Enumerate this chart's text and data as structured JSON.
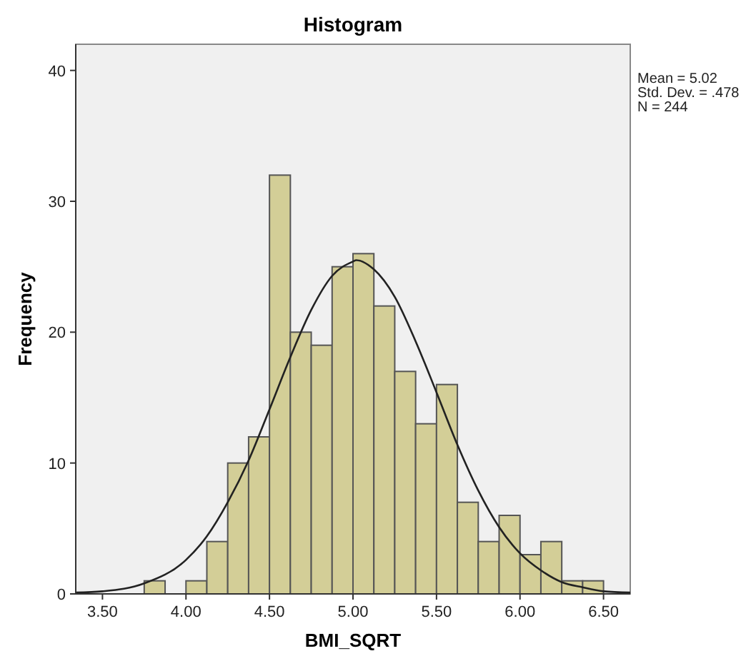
{
  "chart_data": {
    "type": "histogram",
    "title": "Histogram",
    "xlabel": "BMI_SQRT",
    "ylabel": "Frequency",
    "annotations": [
      "Mean = 5.02",
      "Std. Dev. = .478",
      "N = 244"
    ],
    "xlim": [
      3.34,
      6.66
    ],
    "xticks": [
      {
        "value": 3.5,
        "label": "3.50"
      },
      {
        "value": 4,
        "label": "4.00"
      },
      {
        "value": 4.5,
        "label": "4.50"
      },
      {
        "value": 5,
        "label": "5.00"
      },
      {
        "value": 5.5,
        "label": "5.50"
      },
      {
        "value": 6,
        "label": "6.00"
      },
      {
        "value": 6.5,
        "label": "6.50"
      }
    ],
    "ylim": [
      0,
      42
    ],
    "yticks": [
      0,
      10,
      20,
      30,
      40
    ],
    "grid": false,
    "series": [
      {
        "color": "#d3ce97",
        "bins": [
          3.75,
          3.875,
          4,
          4.125,
          4.25,
          4.375,
          4.5,
          4.625,
          4.75,
          4.875,
          5,
          5.125,
          5.25,
          5.375,
          5.5,
          5.625,
          5.75,
          5.875,
          6,
          6.125,
          6.25,
          6.375,
          6.5
        ],
        "values": [
          1,
          0,
          1,
          4,
          10,
          12,
          32,
          20,
          19,
          25,
          26,
          22,
          17,
          13,
          16,
          7,
          4,
          6,
          3,
          4,
          1,
          1
        ]
      },
      {
        "type": "line",
        "color": "#222222",
        "x": [
          3.34,
          3.5,
          3.75,
          4,
          4.125,
          4.25,
          4.375,
          4.5,
          4.625,
          4.75,
          4.875,
          5,
          5.02,
          5.125,
          5.25,
          5.375,
          5.5,
          5.625,
          5.75,
          5.875,
          6,
          6.125,
          6.25,
          6.375,
          6.5,
          6.66
        ],
        "values": [
          0.1,
          0.2,
          0.8,
          2.6,
          4.4,
          7,
          10.2,
          14.1,
          18.1,
          21.7,
          24.3,
          25.4,
          25.5,
          24.8,
          22.7,
          19.3,
          15.4,
          11.4,
          7.9,
          5.1,
          3.1,
          1.8,
          0.9,
          0.5,
          0.2,
          0.1
        ]
      }
    ]
  }
}
